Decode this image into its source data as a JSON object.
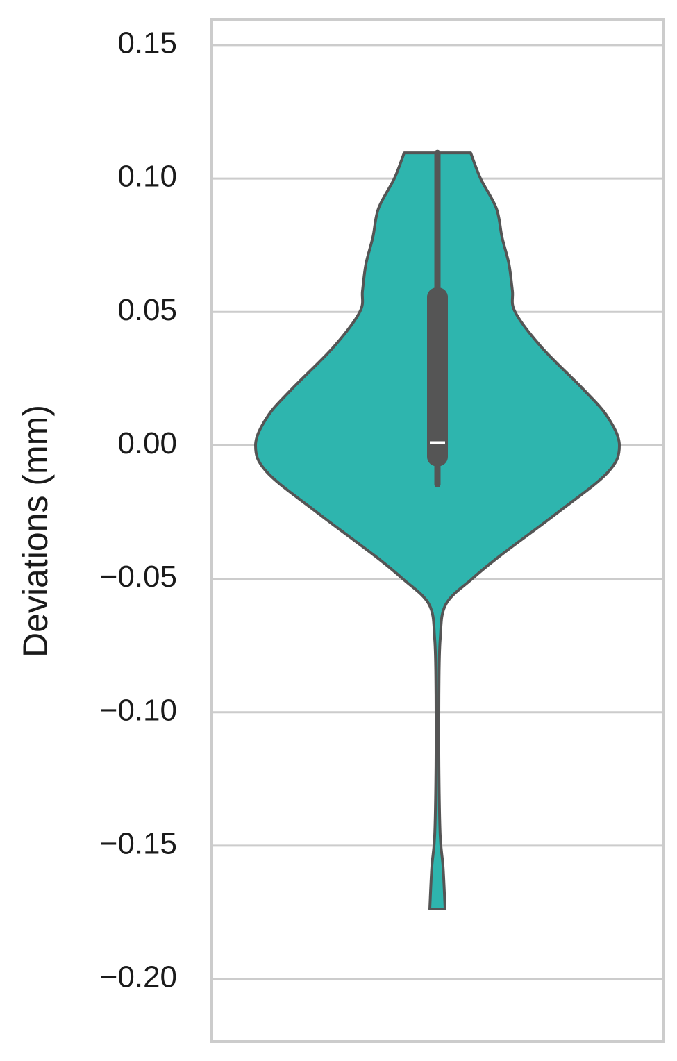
{
  "chart_data": {
    "type": "violin",
    "ylabel": "Deviations (mm)",
    "color": "#2eb5ae",
    "line_color": "#555555",
    "ylim": [
      -0.2234,
      0.1596
    ],
    "yticks": [
      {
        "value": -0.2,
        "label": "−0.20"
      },
      {
        "value": -0.15,
        "label": "−0.15"
      },
      {
        "value": -0.1,
        "label": "−0.10"
      },
      {
        "value": -0.05,
        "label": "−0.05"
      },
      {
        "value": 0,
        "label": "0.00"
      },
      0.05,
      {
        "value": 0.1,
        "label": "0.10"
      },
      0.15
    ],
    "grid": true,
    "kde": {
      "y": [
        0.1096,
        0.1,
        0.0888,
        0.078,
        0.068,
        0.058,
        0.05,
        0.0367,
        0.021,
        0.0107,
        0,
        -0.0102,
        -0.0258,
        -0.0414,
        -0.05,
        -0.0596,
        -0.0727,
        -0.0935,
        -0.12,
        -0.146,
        -0.158,
        -0.1737
      ],
      "density": [
        0.183,
        0.237,
        0.324,
        0.355,
        0.393,
        0.412,
        0.427,
        0.573,
        0.802,
        0.935,
        1,
        0.935,
        0.649,
        0.344,
        0.191,
        0.046,
        0.015,
        0.008,
        0.008,
        0.015,
        0.031,
        0.042
      ]
    },
    "box": {
      "whisker_low": -0.0146,
      "q1": -0.0063,
      "median": 0.001,
      "q3": 0.0576,
      "whisker_high": 0.1096
    }
  }
}
